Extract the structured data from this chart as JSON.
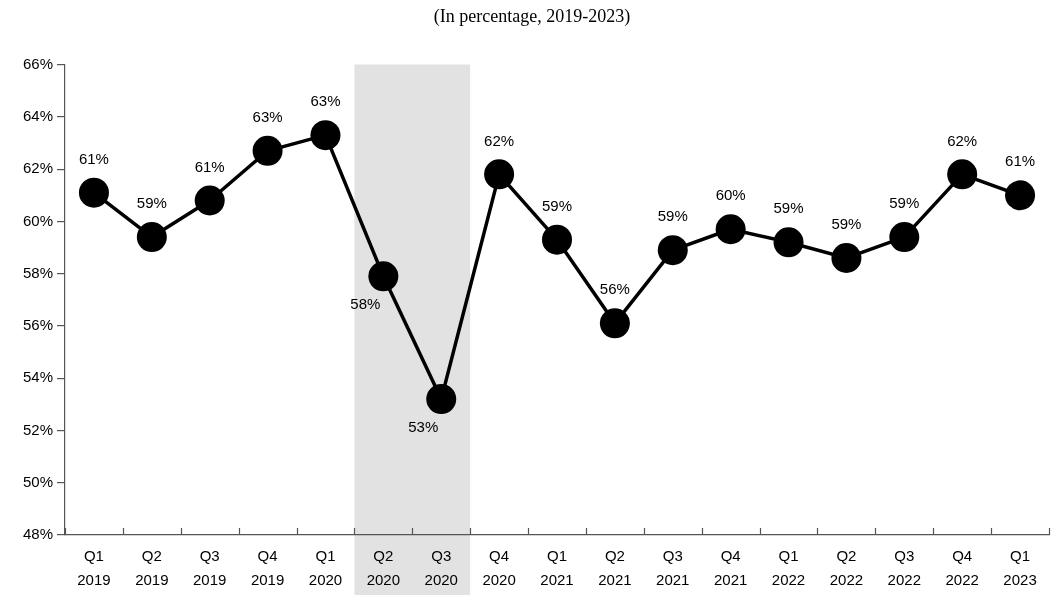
{
  "chart_data": {
    "type": "line",
    "title": "(In percentage, 2019-2023)",
    "categories": [
      "Q1 2019",
      "Q2 2019",
      "Q3 2019",
      "Q4 2019",
      "Q1 2020",
      "Q2 2020",
      "Q3 2020",
      "Q4 2020",
      "Q1 2021",
      "Q2 2021",
      "Q3 2021",
      "Q4 2021",
      "Q1 2022",
      "Q2 2022",
      "Q3 2022",
      "Q4 2022",
      "Q1 2023"
    ],
    "series": [
      {
        "color": "#000000",
        "values": [
          61.1,
          59.4,
          60.8,
          62.7,
          63.3,
          57.9,
          53.2,
          61.8,
          59.3,
          56.1,
          58.9,
          59.7,
          59.2,
          58.6,
          59.4,
          61.8,
          61.0
        ],
        "value_labels": [
          "61%",
          "59%",
          "61%",
          "63%",
          "63%",
          "58%",
          "53%",
          "62%",
          "59%",
          "56%",
          "59%",
          "60%",
          "59%",
          "59%",
          "59%",
          "62%",
          "61%"
        ]
      }
    ],
    "ylim": [
      48,
      66
    ],
    "yticks": [
      {
        "value": 48,
        "label": "48%"
      },
      {
        "value": 50,
        "label": "50%"
      },
      {
        "value": 52,
        "label": "52%"
      },
      {
        "value": 54,
        "label": "54%"
      },
      {
        "value": 56,
        "label": "56%"
      },
      {
        "value": 58,
        "label": "58%"
      },
      {
        "value": 60,
        "label": "60%"
      },
      {
        "value": 62,
        "label": "62%"
      },
      {
        "value": 64,
        "label": "64%"
      },
      {
        "value": 66,
        "label": "66%"
      }
    ],
    "bands": [
      {
        "axis": "x",
        "from": "Q2 2020",
        "to": "Q3 2020",
        "color": "#e2e2e2"
      }
    ],
    "marker": "circle",
    "line_style": "solid"
  }
}
